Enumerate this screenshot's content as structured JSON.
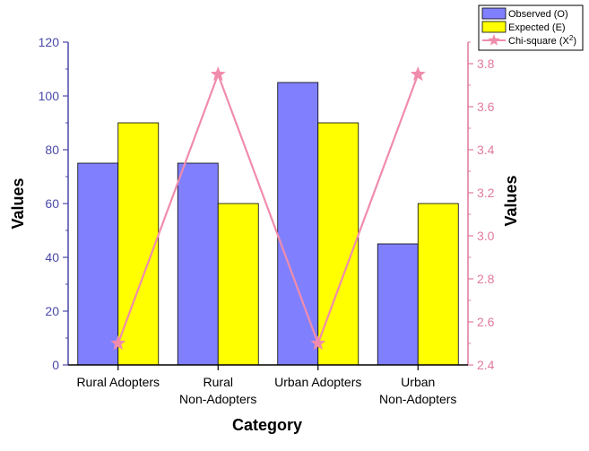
{
  "chart_data": {
    "type": "bar",
    "categories": [
      "Rural Adopters",
      "Rural\nNon-Adopters",
      "Urban Adopters",
      "Urban\nNon-Adopters"
    ],
    "xlabel": "Category",
    "ylabel": "Values",
    "ylabel_right": "Values",
    "ylim": [
      0,
      120
    ],
    "ylim_right": [
      2.4,
      3.9
    ],
    "yticks": [
      0,
      20,
      40,
      60,
      80,
      100,
      120
    ],
    "yticks_right": [
      2.4,
      2.6,
      2.8,
      3.0,
      3.2,
      3.4,
      3.6,
      3.8
    ],
    "series": [
      {
        "name": "Observed (O)",
        "type": "bar",
        "axis": "left",
        "color": "#8080ff",
        "values": [
          75,
          75,
          105,
          45
        ]
      },
      {
        "name": "Expected (E)",
        "type": "bar",
        "axis": "left",
        "color": "#ffff00",
        "values": [
          90,
          60,
          90,
          60
        ]
      },
      {
        "name": "Chi-square (X2)",
        "type": "line",
        "axis": "right",
        "color": "#f08cab",
        "marker": "star",
        "values": [
          2.5,
          3.75,
          2.5,
          3.75
        ]
      }
    ],
    "legend": "top-right",
    "grid": false
  },
  "colors": {
    "left_axis": "#4a4aa8",
    "right_axis": "#e07a9a"
  }
}
